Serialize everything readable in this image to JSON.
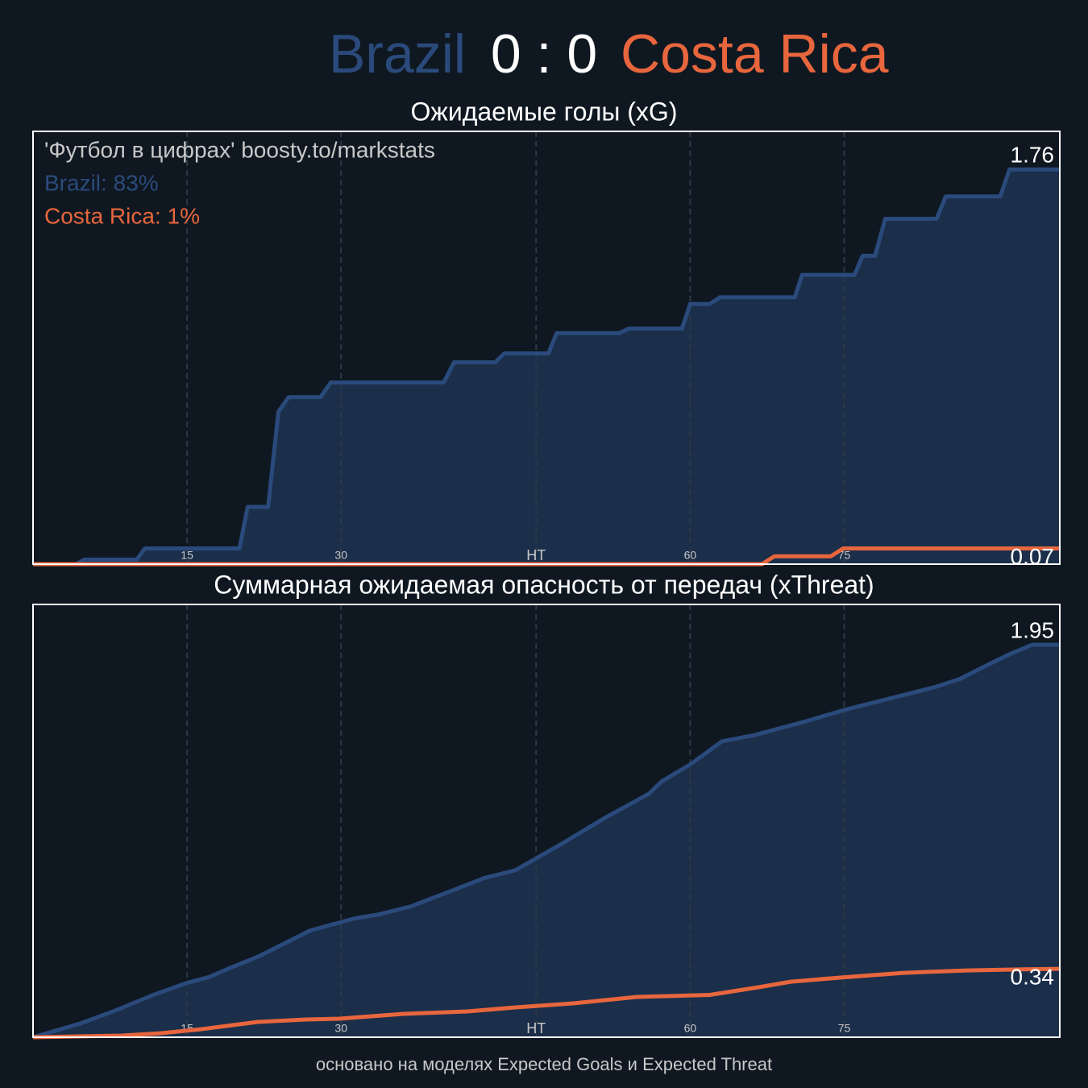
{
  "header": {
    "home": "Brazil",
    "score": "0 : 0",
    "away": "Costa Rica"
  },
  "chart_data": [
    {
      "type": "area",
      "title": "Ожидаемые голы (xG)",
      "annotations": [
        "'Футбол в цифрах' boosty.to/markstats",
        "Brazil: 83%",
        "Costa Rica: 1%"
      ],
      "xlim": [
        0,
        100
      ],
      "xticks": [
        15,
        30,
        {
          "value": 49,
          "label": "HT"
        },
        {
          "value": 64,
          "label": "60"
        },
        {
          "value": 79,
          "label": "75"
        }
      ],
      "ylim": [
        0,
        1.93
      ],
      "grid": true,
      "series": [
        {
          "name": "Brazil",
          "color": "#2b4a7c",
          "fill": "#1b2e4a",
          "x": [
            0,
            4.2,
            5,
            10.1,
            10.9,
            20.1,
            20.9,
            22.9,
            23.9,
            24.9,
            28,
            29,
            40,
            41,
            45,
            45.9,
            50.2,
            51,
            57.1,
            58,
            63.2,
            64,
            65.9,
            66.9,
            74.2,
            74.9,
            80,
            80.8,
            82,
            83,
            88,
            88.9,
            94.2,
            95.1,
            100
          ],
          "values": [
            0,
            0,
            0.02,
            0.02,
            0.07,
            0.07,
            0.255,
            0.255,
            0.68,
            0.745,
            0.745,
            0.81,
            0.81,
            0.9,
            0.9,
            0.94,
            0.94,
            1.03,
            1.03,
            1.05,
            1.05,
            1.16,
            1.16,
            1.19,
            1.19,
            1.29,
            1.29,
            1.375,
            1.375,
            1.54,
            1.54,
            1.64,
            1.64,
            1.76,
            1.76
          ]
        },
        {
          "name": "Costa Rica",
          "color": "#e8663d",
          "x": [
            0,
            71,
            72.2,
            77.7,
            78.9,
            100
          ],
          "values": [
            0,
            0,
            0.035,
            0.035,
            0.07,
            0.07
          ]
        }
      ]
    },
    {
      "type": "area",
      "title": "Суммарная ожидаемая опасность от передач (xThreat)",
      "xlim": [
        0,
        100
      ],
      "xticks": [
        15,
        30,
        {
          "value": 49,
          "label": "HT"
        },
        {
          "value": 64,
          "label": "60"
        },
        {
          "value": 79,
          "label": "75"
        }
      ],
      "ylim": [
        0,
        2.15
      ],
      "grid": true,
      "series": [
        {
          "name": "Brazil",
          "color": "#2b4a7c",
          "fill": "#1b2e4a",
          "x": [
            0,
            4.6,
            7.8,
            11.7,
            15,
            17.2,
            18.8,
            21.9,
            27,
            31.3,
            33.7,
            36.8,
            41.9,
            43.9,
            47,
            51.8,
            55.7,
            60,
            61.2,
            64,
            67.1,
            70.2,
            75.3,
            79.3,
            84,
            87.9,
            90.3,
            92.6,
            95,
            97.3,
            100
          ],
          "values": [
            0,
            0.068,
            0.128,
            0.21,
            0.27,
            0.3,
            0.336,
            0.4,
            0.53,
            0.59,
            0.61,
            0.65,
            0.75,
            0.79,
            0.83,
            0.97,
            1.09,
            1.21,
            1.27,
            1.355,
            1.47,
            1.5,
            1.57,
            1.63,
            1.69,
            1.74,
            1.78,
            1.84,
            1.9,
            1.95,
            1.95
          ]
        },
        {
          "name": "Costa Rica",
          "color": "#e8663d",
          "x": [
            0,
            8.6,
            12.5,
            16.4,
            21.9,
            26.6,
            29.8,
            36.1,
            42.3,
            47,
            52.6,
            58.8,
            65.9,
            70.6,
            73.8,
            78.5,
            84.8,
            91,
            95,
            100
          ],
          "values": [
            0,
            0.008,
            0.02,
            0.04,
            0.076,
            0.088,
            0.092,
            0.116,
            0.128,
            0.148,
            0.168,
            0.2,
            0.21,
            0.248,
            0.276,
            0.296,
            0.32,
            0.332,
            0.336,
            0.34
          ]
        }
      ]
    }
  ],
  "footer": "основано на моделях Expected Goals и Expected Threat"
}
